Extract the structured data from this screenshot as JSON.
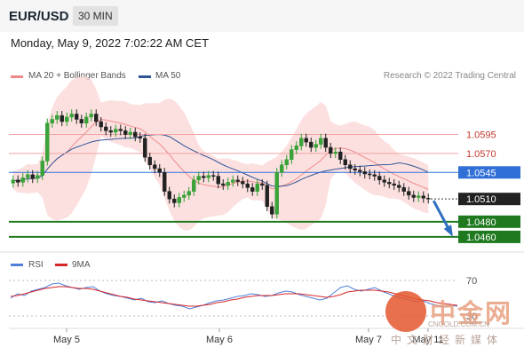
{
  "header": {
    "symbol": "EUR/USD",
    "timeframe": "30 MIN",
    "datetime": "Monday, May 9, 2022 7:02:22 AM CET"
  },
  "legend": {
    "items": [
      {
        "label": "MA 20 + Bollinger Bands",
        "color": "#f08a8a"
      },
      {
        "label": "MA 50",
        "color": "#2f5597"
      }
    ],
    "credit": "Research © 2022 Trading Central"
  },
  "rsi_legend": {
    "items": [
      {
        "label": "RSI",
        "color": "#4f7fd9"
      },
      {
        "label": "9MA",
        "color": "#d62728"
      }
    ]
  },
  "watermark": {
    "logo_text": "中金网",
    "url": "CNGOLD.COM.CN",
    "sub": "中文财经新媒体"
  },
  "colors": {
    "resistance": "#f2a3a3",
    "support": "#1f7a1f",
    "pivot": "#2f6fd6",
    "bull": "#2e9e2e",
    "bear": "#222222",
    "band": "#fbd6d6"
  },
  "chart_data": {
    "type": "candlestick",
    "x_ticks": [
      "May 5",
      "May 6",
      "May 7",
      "May 11"
    ],
    "y_range": [
      1.044,
      1.066
    ],
    "levels": [
      {
        "label": "1.0595",
        "value": 1.0595,
        "kind": "resistance"
      },
      {
        "label": "1.0570",
        "value": 1.057,
        "kind": "resistance"
      },
      {
        "label": "1.0545",
        "value": 1.0545,
        "kind": "pivot"
      },
      {
        "label": "1.0510",
        "value": 1.051,
        "kind": "last"
      },
      {
        "label": "1.0480",
        "value": 1.048,
        "kind": "support"
      },
      {
        "label": "1.0460",
        "value": 1.046,
        "kind": "support"
      }
    ],
    "closes": [
      1.0535,
      1.0532,
      1.0538,
      1.0542,
      1.0537,
      1.0541,
      1.056,
      1.061,
      1.0615,
      1.062,
      1.0612,
      1.0618,
      1.0622,
      1.0615,
      1.061,
      1.0618,
      1.0622,
      1.0612,
      1.0605,
      1.06,
      1.0598,
      1.0602,
      1.06,
      1.0595,
      1.0598,
      1.0592,
      1.059,
      1.0565,
      1.0555,
      1.055,
      1.0545,
      1.052,
      1.051,
      1.0505,
      1.0512,
      1.0515,
      1.052,
      1.0535,
      1.054,
      1.0538,
      1.0541,
      1.054,
      1.053,
      1.0528,
      1.0532,
      1.0535,
      1.0533,
      1.053,
      1.0525,
      1.052,
      1.053,
      1.0528,
      1.05,
      1.049,
      1.0545,
      1.0555,
      1.0562,
      1.0575,
      1.058,
      1.059,
      1.0585,
      1.0578,
      1.0582,
      1.059,
      1.0578,
      1.057,
      1.0572,
      1.0562,
      1.0555,
      1.055,
      1.0548,
      1.0546,
      1.0543,
      1.0542,
      1.054,
      1.0535,
      1.0532,
      1.053,
      1.0528,
      1.0525,
      1.052,
      1.0515,
      1.0512,
      1.0514,
      1.0511,
      1.051
    ],
    "rsi_levels": [
      70,
      30
    ],
    "rsi": [
      50,
      55,
      53,
      58,
      60,
      62,
      66,
      67,
      64,
      62,
      60,
      62,
      63,
      58,
      55,
      53,
      52,
      50,
      48,
      50,
      46,
      45,
      47,
      44,
      42,
      41,
      38,
      40,
      42,
      45,
      47,
      48,
      50,
      52,
      53,
      55,
      54,
      52,
      53,
      56,
      58,
      57,
      54,
      52,
      50,
      48,
      50,
      56,
      62,
      64,
      60,
      58,
      60,
      62,
      58,
      55,
      52,
      50,
      48,
      46,
      47,
      44,
      42,
      40,
      42,
      41
    ],
    "rsi_ma": [
      52,
      53,
      55,
      57,
      59,
      61,
      62,
      63,
      63,
      62,
      61,
      61,
      60,
      58,
      56,
      54,
      52,
      51,
      49,
      48,
      47,
      46,
      45,
      44,
      43,
      42,
      41,
      41,
      42,
      43,
      45,
      46,
      48,
      49,
      51,
      52,
      53,
      53,
      53,
      54,
      55,
      55,
      55,
      54,
      53,
      52,
      51,
      52,
      54,
      57,
      58,
      59,
      59,
      59,
      58,
      57,
      55,
      53,
      51,
      49,
      48,
      47,
      45,
      44,
      43,
      42
    ]
  }
}
